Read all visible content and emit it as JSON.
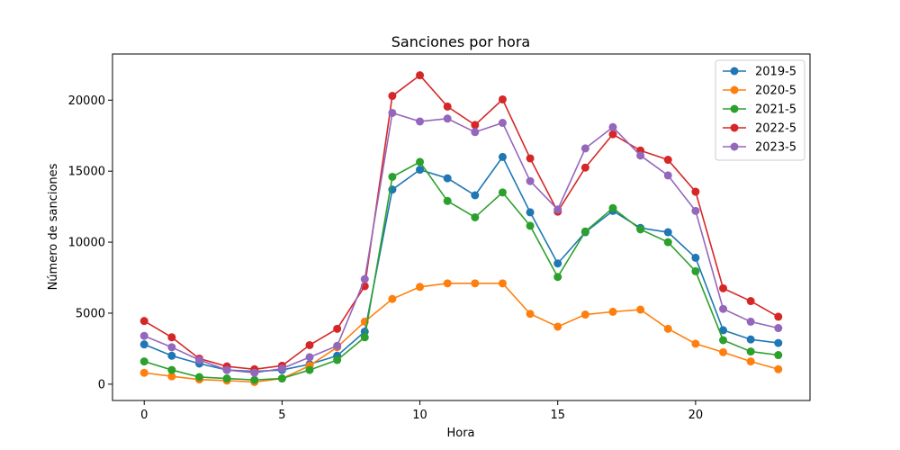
{
  "chart_data": {
    "type": "line",
    "title": "Sanciones por hora",
    "xlabel": "Hora",
    "ylabel": "Número de sanciones",
    "xlim": [
      -1.15,
      24.15
    ],
    "ylim": [
      -1150,
      23250
    ],
    "xticks": [
      0,
      5,
      10,
      15,
      20
    ],
    "yticks": [
      0,
      5000,
      10000,
      15000,
      20000
    ],
    "grid": false,
    "legend_position": "top-right",
    "marker": "circle",
    "x": [
      0,
      1,
      2,
      3,
      4,
      5,
      6,
      7,
      8,
      9,
      10,
      11,
      12,
      13,
      14,
      15,
      16,
      17,
      18,
      19,
      20,
      21,
      22,
      23
    ],
    "series": [
      {
        "name": "2019-5",
        "color": "#1f77b4",
        "values": [
          2800,
          2000,
          1450,
          1000,
          900,
          1000,
          1400,
          2000,
          3700,
          13700,
          15100,
          14500,
          13300,
          16000,
          12100,
          8500,
          10700,
          12200,
          11000,
          10700,
          8900,
          3800,
          3150,
          2900
        ]
      },
      {
        "name": "2020-5",
        "color": "#ff7f0e",
        "values": [
          800,
          550,
          330,
          250,
          150,
          400,
          1300,
          2600,
          4400,
          6000,
          6850,
          7100,
          7100,
          7100,
          4950,
          4050,
          4900,
          5100,
          5250,
          3900,
          2850,
          2250,
          1600,
          1050
        ]
      },
      {
        "name": "2021-5",
        "color": "#2ca02c",
        "values": [
          1600,
          1000,
          500,
          400,
          300,
          400,
          1000,
          1700,
          3300,
          14600,
          15650,
          12900,
          11750,
          13500,
          11150,
          7550,
          10750,
          12400,
          10900,
          10000,
          7950,
          3100,
          2300,
          2050
        ]
      },
      {
        "name": "2022-5",
        "color": "#d62728",
        "values": [
          4450,
          3300,
          1800,
          1250,
          1050,
          1300,
          2750,
          3900,
          6900,
          20300,
          21750,
          19550,
          18250,
          20050,
          15900,
          12150,
          15250,
          17600,
          16450,
          15800,
          13550,
          6750,
          5850,
          4750
        ]
      },
      {
        "name": "2023-5",
        "color": "#9467bd",
        "values": [
          3400,
          2600,
          1700,
          1000,
          800,
          1100,
          1900,
          2700,
          7400,
          19100,
          18500,
          18700,
          17750,
          18400,
          14300,
          12300,
          16600,
          18100,
          16100,
          14700,
          12200,
          5300,
          4400,
          3950
        ]
      }
    ]
  }
}
